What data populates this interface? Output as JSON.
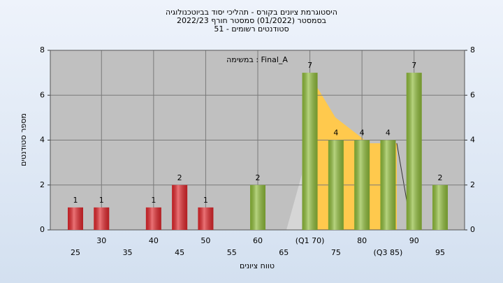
{
  "chart_data": {
    "type": "bar",
    "title": [
      "היסטוגרמת ציונים בקורס - תהליכי יסוד בביוטכנולוגיה",
      "בסמסטר  (01/2022)  סמסטר חורף 2022/23",
      "סטודנטים רשומים - 51"
    ],
    "annotation": "במשימה : Final_A",
    "x_label": "טווח ציונים",
    "y_label": "מספר סטודנטים",
    "categories": [
      "25",
      "30",
      "35",
      "40",
      "45",
      "50",
      "55",
      "60",
      "65",
      "(Q1 70)",
      "75",
      "80",
      "(Q3 85)",
      "90",
      "95"
    ],
    "values": [
      1,
      1,
      0,
      1,
      2,
      1,
      0,
      2,
      0,
      7,
      4,
      4,
      4,
      7,
      2
    ],
    "colors": [
      "#e0262b",
      "#e0262b",
      "#e0262b",
      "#e0262b",
      "#e0262b",
      "#e0262b",
      "#e0262b",
      "#8fbc3a",
      "#8fbc3a",
      "#8fbc3a",
      "#8fbc3a",
      "#8fbc3a",
      "#8fbc3a",
      "#8fbc3a",
      "#8fbc3a"
    ],
    "ylim": [
      0,
      8
    ],
    "yticks": [
      0,
      2,
      4,
      6,
      8
    ],
    "y2lim": [
      0,
      8
    ],
    "y2ticks": [
      0,
      2,
      4,
      6,
      8
    ],
    "grid": true
  }
}
